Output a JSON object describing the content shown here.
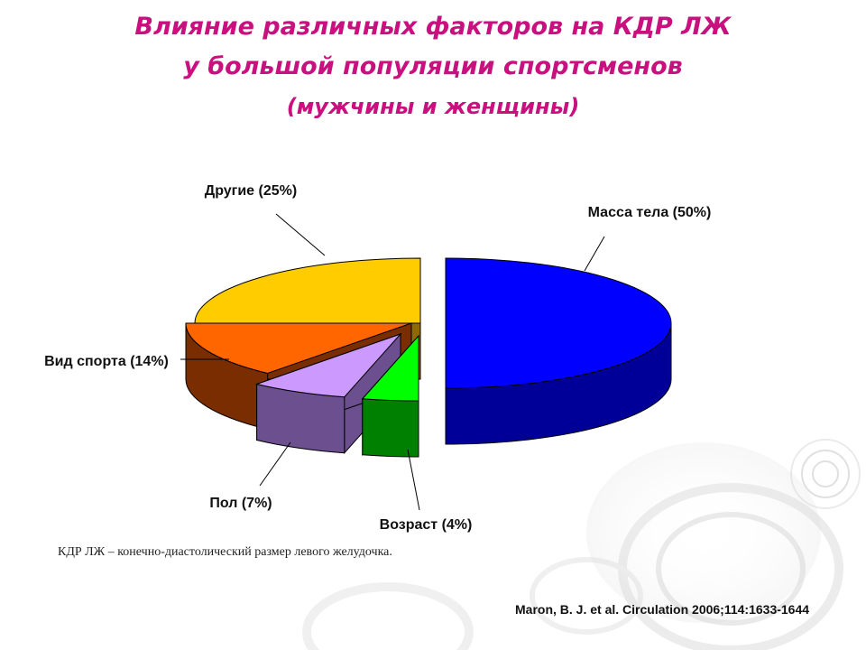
{
  "title_line1": "Влияние различных факторов на КДР ЛЖ",
  "title_line2": "у большой популяции спортсменов",
  "title_line3": "(мужчины и женщины)",
  "chart_data": {
    "type": "pie",
    "categories": [
      "Масса тела",
      "Возраст",
      "Пол",
      "Вид спорта",
      "Другие"
    ],
    "values": [
      50,
      4,
      7,
      14,
      25
    ],
    "labels": [
      "Масса тела (50%)",
      "Возраст (4%)",
      "Пол (7%)",
      "Вид спорта (14%)",
      "Другие (25%)"
    ],
    "colors": [
      "#0000ff",
      "#00ff00",
      "#cc99ff",
      "#ff6600",
      "#ffcc00"
    ],
    "side_colors": [
      "#000099",
      "#008000",
      "#6b4f8f",
      "#7a2e00",
      "#8f6a00"
    ],
    "style": "3d-exploded"
  },
  "footnote": "КДР ЛЖ – конечно-диастолический размер левого желудочка.",
  "citation": "Maron, B. J. et al. Circulation 2006;114:1633-1644"
}
